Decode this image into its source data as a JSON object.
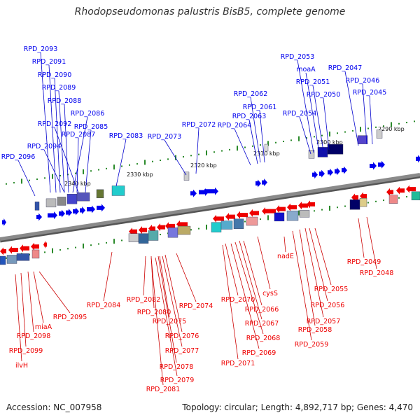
{
  "title": "Rhodopseudomonas palustris BisB5, complete genome",
  "accession_text": "Accession: NC_007958",
  "summary_text": "Topology: circular; Length: 4,892,717 bp; Genes: 4,470",
  "colors": {
    "forward_gene": "#0000ee",
    "reverse_gene": "#ee0000",
    "backbone": "#8a8a8a",
    "tick": "#2a8a2a",
    "leader_forward": "#0000cc",
    "leader_reverse": "#cc0000"
  },
  "scale_labels": [
    "2340 kbp",
    "2330 kbp",
    "2320 kbp",
    "2310 kbp",
    "2300 kbp",
    "2290 kbp"
  ],
  "forward_labels": [
    "RPD_2093",
    "RPD_2091",
    "RPD_2090",
    "RPD_2089",
    "RPD_2088",
    "RPD_2086",
    "RPD_2092",
    "RPD_2085",
    "RPD_2087",
    "RPD_2094",
    "RPD_2096",
    "RPD_2083",
    "RPD_2073",
    "RPD_2072",
    "RPD_2064",
    "RPD_2063",
    "RPD_2061",
    "RPD_2062",
    "RPD_2054",
    "RPD_2053",
    "moaA",
    "RPD_2051",
    "RPD_2050",
    "RPD_2047",
    "RPD_2046",
    "RPD_2045"
  ],
  "reverse_labels": [
    "RPD_2049",
    "RPD_2048",
    "nadE",
    "RPD_2055",
    "RPD_2056",
    "RPD_2057",
    "RPD_2058",
    "RPD_2059",
    "cysS",
    "RPD_2070",
    "RPD_2066",
    "RPD_2067",
    "RPD_2068",
    "RPD_2069",
    "RPD_2071",
    "RPD_2084",
    "RPD_2082",
    "RPD_2080",
    "RPD_2075",
    "RPD_2074",
    "RPD_2076",
    "RPD_2077",
    "RPD_2078",
    "RPD_2079",
    "RPD_2081",
    "RPD_2095",
    "miaA",
    "RPD_2098",
    "RPD_2099",
    "ilvH"
  ]
}
